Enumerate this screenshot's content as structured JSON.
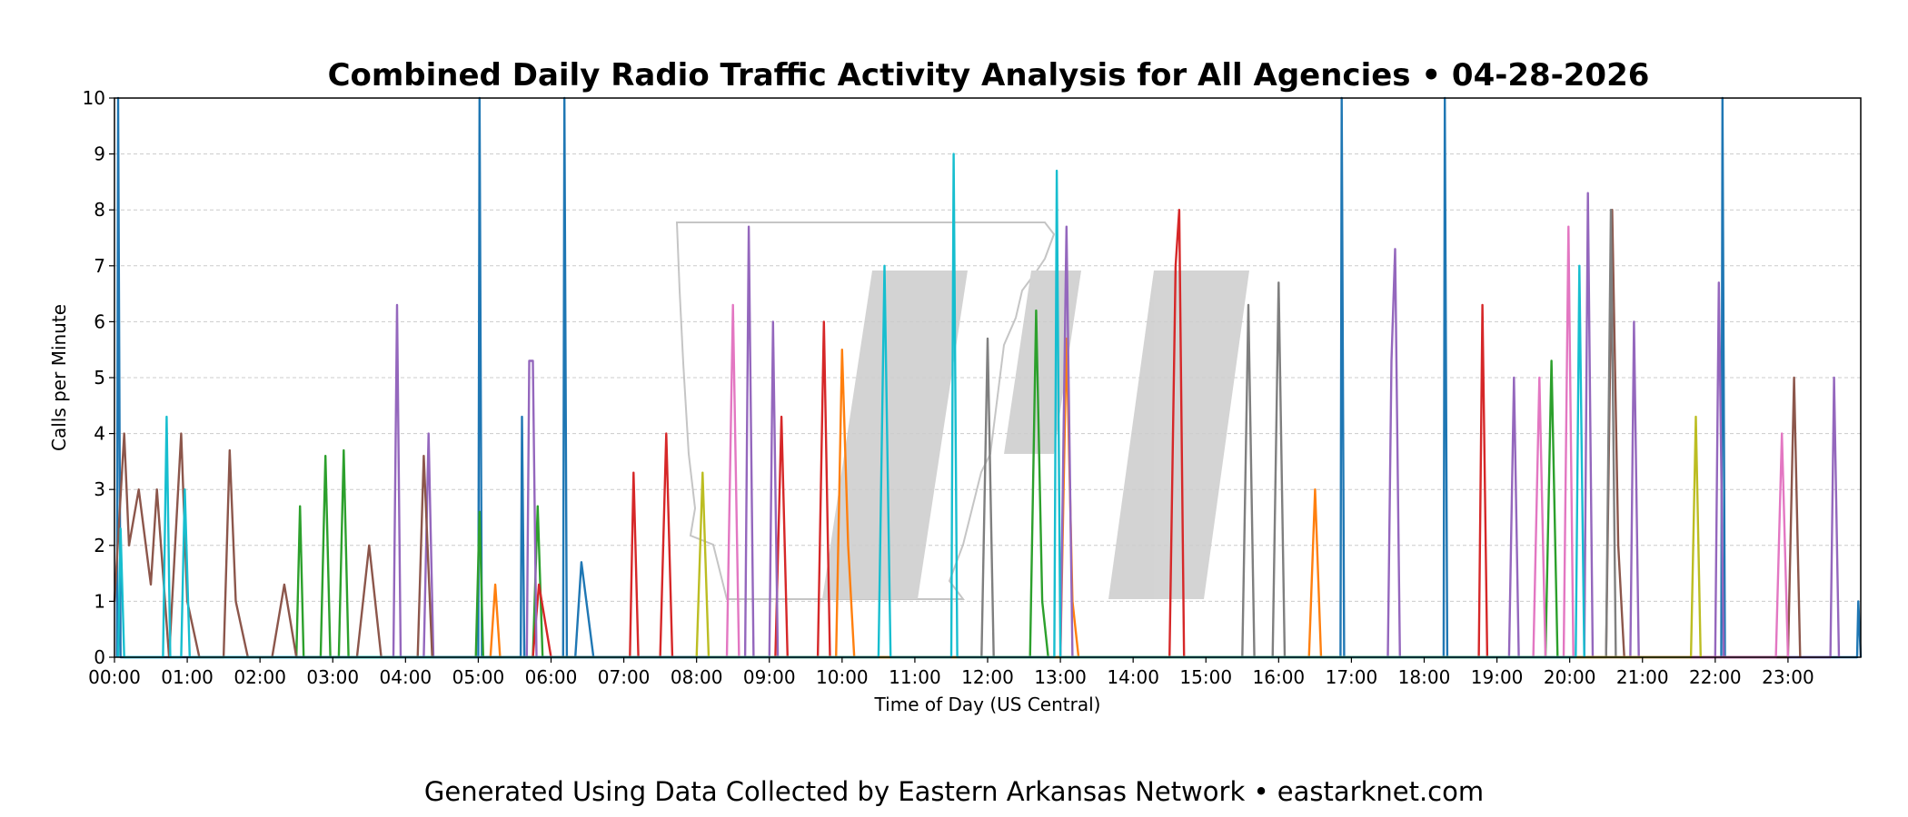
{
  "chart_data": {
    "type": "line",
    "title": "Combined Daily Radio Traffic Activity Analysis for All Agencies • 04-28-2026",
    "xlabel": "Time of Day (US Central)",
    "ylabel": "Calls per Minute",
    "xlim": [
      0,
      1440
    ],
    "ylim": [
      0,
      10
    ],
    "x_unit": "minutes since 00:00",
    "x_tick_labels": [
      "00:00",
      "01:00",
      "02:00",
      "03:00",
      "04:00",
      "05:00",
      "06:00",
      "07:00",
      "08:00",
      "09:00",
      "10:00",
      "11:00",
      "12:00",
      "13:00",
      "14:00",
      "15:00",
      "16:00",
      "17:00",
      "18:00",
      "19:00",
      "20:00",
      "21:00",
      "22:00",
      "23:00"
    ],
    "y_tick_labels": [
      "0",
      "1",
      "2",
      "3",
      "4",
      "5",
      "6",
      "7",
      "8",
      "9",
      "10"
    ],
    "grid": "horizontal dashed",
    "legend": "none",
    "series_colors": [
      "#1f77b4",
      "#ff7f0e",
      "#2ca02c",
      "#d62728",
      "#9467bd",
      "#8c564b",
      "#e377c2",
      "#7f7f7f",
      "#bcbd22",
      "#17becf"
    ],
    "series": [
      {
        "color": "#1f77b4",
        "points": [
          [
            2,
            0
          ],
          [
            3,
            10
          ],
          [
            5,
            0
          ],
          [
            300,
            0
          ],
          [
            301,
            10
          ],
          [
            303,
            0
          ],
          [
            335,
            0
          ],
          [
            336,
            4.3
          ],
          [
            338,
            0
          ],
          [
            370,
            0
          ],
          [
            371,
            10
          ],
          [
            373,
            0
          ],
          [
            380,
            0
          ],
          [
            385,
            1.7
          ],
          [
            395,
            0
          ],
          [
            1011,
            0
          ],
          [
            1012,
            10
          ],
          [
            1014,
            0
          ],
          [
            1096,
            0
          ],
          [
            1097,
            10
          ],
          [
            1099,
            0
          ],
          [
            1325,
            0
          ],
          [
            1326,
            10
          ],
          [
            1328,
            0
          ],
          [
            1437,
            0
          ],
          [
            1438,
            1
          ],
          [
            1440,
            0
          ]
        ]
      },
      {
        "color": "#ff7f0e",
        "points": [
          [
            310,
            0
          ],
          [
            314,
            1.3
          ],
          [
            318,
            0
          ],
          [
            595,
            0
          ],
          [
            600,
            5.5
          ],
          [
            605,
            2
          ],
          [
            610,
            0
          ],
          [
            780,
            0
          ],
          [
            785,
            5.7
          ],
          [
            790,
            1
          ],
          [
            795,
            0
          ],
          [
            985,
            0
          ],
          [
            990,
            3
          ],
          [
            995,
            0
          ]
        ]
      },
      {
        "color": "#2ca02c",
        "points": [
          [
            150,
            0
          ],
          [
            153,
            2.7
          ],
          [
            156,
            0
          ],
          [
            170,
            0
          ],
          [
            174,
            3.6
          ],
          [
            178,
            0
          ],
          [
            185,
            0
          ],
          [
            189,
            3.7
          ],
          [
            193,
            0
          ],
          [
            298,
            0
          ],
          [
            301,
            2.6
          ],
          [
            304,
            0
          ],
          [
            345,
            0
          ],
          [
            349,
            2.7
          ],
          [
            353,
            0
          ],
          [
            755,
            0
          ],
          [
            760,
            6.2
          ],
          [
            765,
            1
          ],
          [
            770,
            0
          ],
          [
            1180,
            0
          ],
          [
            1185,
            5.3
          ],
          [
            1190,
            0
          ]
        ]
      },
      {
        "color": "#d62728",
        "points": [
          [
            345,
            0
          ],
          [
            350,
            1.3
          ],
          [
            360,
            0
          ],
          [
            425,
            0
          ],
          [
            428,
            3.3
          ],
          [
            432,
            0
          ],
          [
            450,
            0
          ],
          [
            455,
            4
          ],
          [
            460,
            0
          ],
          [
            545,
            0
          ],
          [
            550,
            4.3
          ],
          [
            555,
            0
          ],
          [
            580,
            0
          ],
          [
            585,
            6
          ],
          [
            590,
            0
          ],
          [
            870,
            0
          ],
          [
            875,
            7
          ],
          [
            878,
            8
          ],
          [
            882,
            0
          ],
          [
            1125,
            0
          ],
          [
            1128,
            6.3
          ],
          [
            1132,
            0
          ]
        ]
      },
      {
        "color": "#9467bd",
        "points": [
          [
            230,
            0
          ],
          [
            233,
            6.3
          ],
          [
            236,
            0
          ],
          [
            255,
            0
          ],
          [
            259,
            4
          ],
          [
            263,
            0
          ],
          [
            340,
            0
          ],
          [
            342,
            5.3
          ],
          [
            345,
            5.3
          ],
          [
            348,
            0
          ],
          [
            520,
            0
          ],
          [
            523,
            7.7
          ],
          [
            527,
            0
          ],
          [
            540,
            0
          ],
          [
            543,
            6
          ],
          [
            547,
            0
          ],
          [
            780,
            0
          ],
          [
            785,
            7.7
          ],
          [
            790,
            0
          ],
          [
            1050,
            0
          ],
          [
            1053,
            5.3
          ],
          [
            1056,
            7.3
          ],
          [
            1060,
            0
          ],
          [
            1150,
            0
          ],
          [
            1154,
            5
          ],
          [
            1158,
            0
          ],
          [
            1212,
            0
          ],
          [
            1215,
            8.3
          ],
          [
            1219,
            0
          ],
          [
            1250,
            0
          ],
          [
            1253,
            6
          ],
          [
            1257,
            0
          ],
          [
            1320,
            0
          ],
          [
            1323,
            6.7
          ],
          [
            1327,
            0
          ],
          [
            1415,
            0
          ],
          [
            1418,
            5
          ],
          [
            1422,
            0
          ]
        ]
      },
      {
        "color": "#8c564b",
        "points": [
          [
            0,
            1
          ],
          [
            8,
            4
          ],
          [
            12,
            2
          ],
          [
            20,
            3
          ],
          [
            30,
            1.3
          ],
          [
            35,
            3
          ],
          [
            45,
            0
          ],
          [
            55,
            4
          ],
          [
            60,
            1
          ],
          [
            70,
            0
          ],
          [
            90,
            0
          ],
          [
            95,
            3.7
          ],
          [
            100,
            1
          ],
          [
            110,
            0
          ],
          [
            130,
            0
          ],
          [
            140,
            1.3
          ],
          [
            150,
            0
          ],
          [
            200,
            0
          ],
          [
            210,
            2
          ],
          [
            220,
            0
          ],
          [
            250,
            0
          ],
          [
            255,
            3.6
          ],
          [
            262,
            0
          ],
          [
            1230,
            0
          ],
          [
            1235,
            8
          ],
          [
            1240,
            2
          ],
          [
            1245,
            0
          ],
          [
            1380,
            0
          ],
          [
            1385,
            5
          ],
          [
            1390,
            0
          ]
        ]
      },
      {
        "color": "#e377c2",
        "points": [
          [
            505,
            0
          ],
          [
            510,
            6.3
          ],
          [
            515,
            0
          ],
          [
            1170,
            0
          ],
          [
            1175,
            5
          ],
          [
            1180,
            0
          ],
          [
            1195,
            0
          ],
          [
            1199,
            7.7
          ],
          [
            1203,
            0
          ],
          [
            1370,
            0
          ],
          [
            1375,
            4
          ],
          [
            1380,
            0
          ]
        ]
      },
      {
        "color": "#7f7f7f",
        "points": [
          [
            715,
            0
          ],
          [
            720,
            5.7
          ],
          [
            725,
            0
          ],
          [
            930,
            0
          ],
          [
            935,
            6.3
          ],
          [
            940,
            0
          ],
          [
            955,
            0
          ],
          [
            960,
            6.7
          ],
          [
            965,
            0
          ],
          [
            1230,
            0
          ],
          [
            1234,
            8
          ],
          [
            1238,
            0
          ]
        ]
      },
      {
        "color": "#bcbd22",
        "points": [
          [
            480,
            0
          ],
          [
            485,
            3.3
          ],
          [
            490,
            0
          ],
          [
            1300,
            0
          ],
          [
            1304,
            4.3
          ],
          [
            1308,
            0
          ]
        ]
      },
      {
        "color": "#17becf",
        "points": [
          [
            3,
            0
          ],
          [
            5,
            2.3
          ],
          [
            8,
            0
          ],
          [
            40,
            0
          ],
          [
            43,
            4.3
          ],
          [
            46,
            0
          ],
          [
            55,
            0
          ],
          [
            58,
            3
          ],
          [
            62,
            0
          ],
          [
            630,
            0
          ],
          [
            635,
            7
          ],
          [
            640,
            0
          ],
          [
            690,
            0
          ],
          [
            692,
            9
          ],
          [
            695,
            0
          ],
          [
            775,
            0
          ],
          [
            777,
            8.7
          ],
          [
            780,
            0
          ],
          [
            1205,
            0
          ],
          [
            1208,
            7
          ],
          [
            1212,
            0
          ]
        ]
      }
    ]
  },
  "footer": {
    "text": "Generated Using Data Collected by Eastern Arkansas Network • eastarknet.com"
  }
}
